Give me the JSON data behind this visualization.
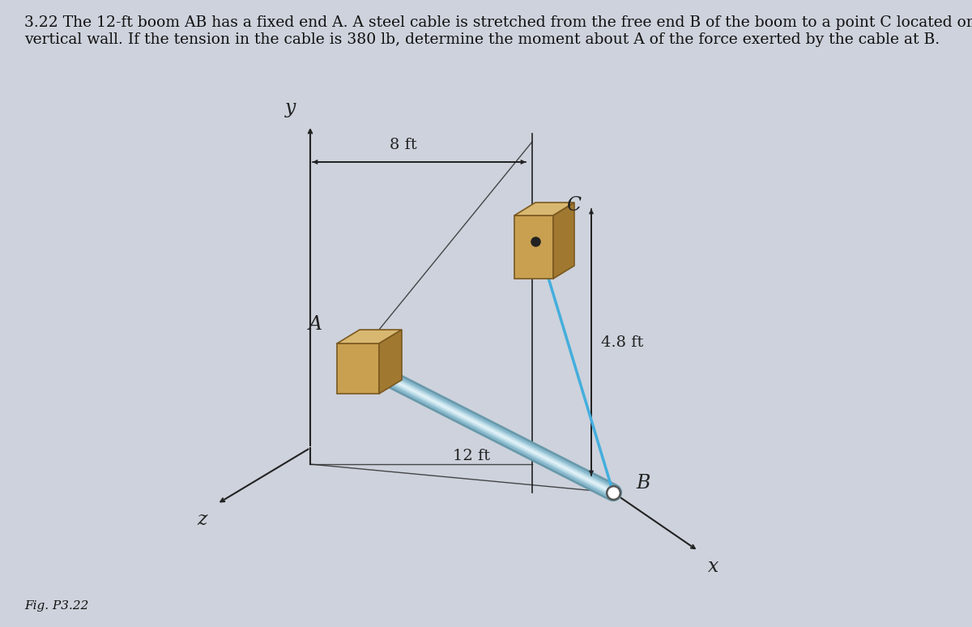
{
  "bg_color": "#cdd2dc",
  "title_line1": "3.22 The 12-ft boom ",
  "title_AB": "AB",
  "title_line1b": " has a fixed end ",
  "title_A": "A",
  "title_line1c": ". A steel cable is stretched from the free end ",
  "title_B": "B",
  "title_line1d": " of the boom to a point ",
  "title_C": "C",
  "title_line1e": " located on the",
  "title_line2": "vertical wall. If the tension in the cable is 380 lb, determine the moment about ",
  "title_A2": "A",
  "title_line2b": " of the force exerted by the cable at ",
  "title_B2": "B",
  "title_line2c": ".",
  "fig_label": "Fig. P3.22",
  "title_fontsize": 13.5,
  "fig_label_fontsize": 11,
  "axis_color": "#222222",
  "block_front": "#c8a050",
  "block_top": "#d8b870",
  "block_right": "#a07830",
  "block_edge": "#7a5820",
  "boom_colors": [
    "#6899aa",
    "#88b8cc",
    "#aad0de",
    "#c8e4ee",
    "#e0f0f6"
  ],
  "boom_widths": [
    16,
    12,
    8,
    5,
    2
  ],
  "cable_color": "#44aedd",
  "dot_color": "#222222",
  "label_fontsize": 15,
  "dim_fontsize": 14,
  "label_A": "A",
  "label_B": "B",
  "label_C": "C",
  "label_x": "x",
  "label_y": "y",
  "label_z": "z",
  "label_8ft": "8 ft",
  "label_12ft": "12 ft",
  "label_48ft": "4.8 ft"
}
